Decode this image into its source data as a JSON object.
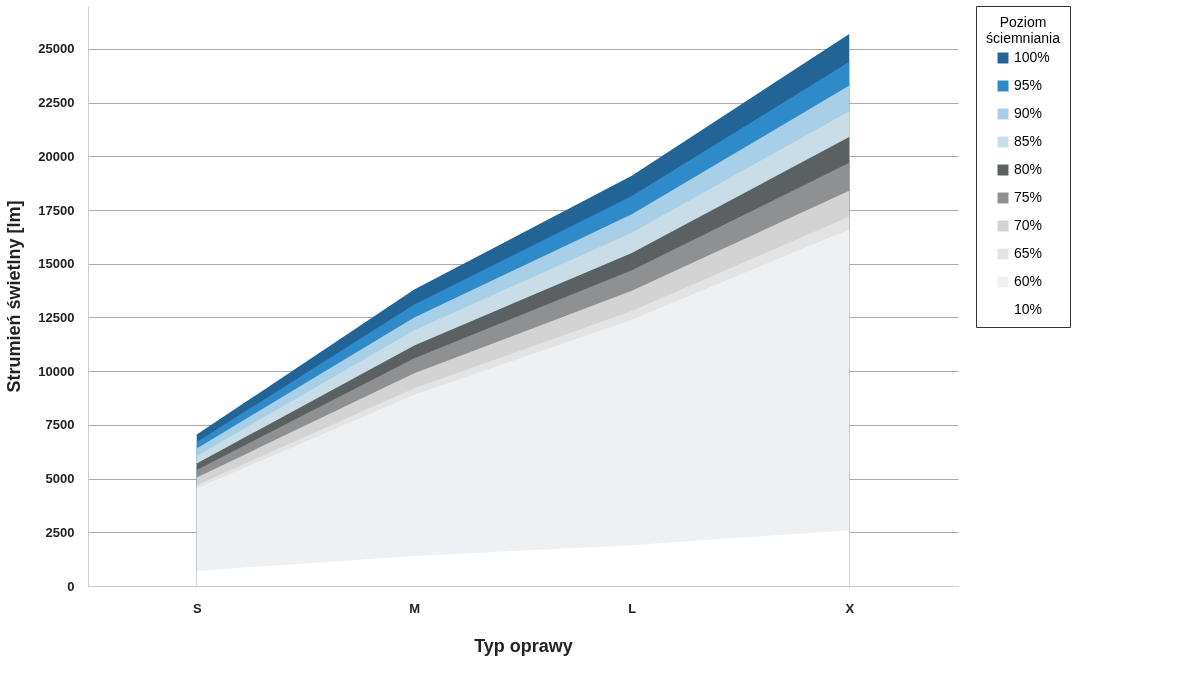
{
  "chart_data": {
    "type": "area",
    "xlabel": "Typ oprawy",
    "ylabel": "Strumień świetlny [lm]",
    "legend_title": "Poziom ściemniania",
    "categories": [
      "S",
      "M",
      "L",
      "X"
    ],
    "series": [
      {
        "name": "100%",
        "color": "#236496",
        "values": [
          7050,
          13800,
          19100,
          25700
        ]
      },
      {
        "name": "95%",
        "color": "#2e8ac9",
        "values": [
          6700,
          13100,
          18150,
          24400
        ]
      },
      {
        "name": "90%",
        "color": "#a8cfe8",
        "values": [
          6400,
          12500,
          17300,
          23300
        ]
      },
      {
        "name": "85%",
        "color": "#c8dde8",
        "values": [
          6050,
          11900,
          16450,
          22100
        ]
      },
      {
        "name": "80%",
        "color": "#5b6163",
        "values": [
          5700,
          11200,
          15500,
          20900
        ]
      },
      {
        "name": "75%",
        "color": "#8e9092",
        "values": [
          5400,
          10600,
          14700,
          19700
        ]
      },
      {
        "name": "70%",
        "color": "#d3d3d3",
        "values": [
          5050,
          9900,
          13750,
          18400
        ]
      },
      {
        "name": "65%",
        "color": "#e3e3e3",
        "values": [
          4700,
          9200,
          12800,
          17200
        ]
      },
      {
        "name": "60%",
        "color": "#eef1f3",
        "values": [
          4550,
          8900,
          12400,
          16600
        ]
      },
      {
        "name": "10%",
        "color": "#ffffff",
        "values": [
          700,
          1400,
          1900,
          2600
        ]
      }
    ],
    "ylim": [
      0,
      27000
    ],
    "yticks": [
      0,
      2500,
      5000,
      7500,
      10000,
      12500,
      15000,
      17500,
      20000,
      22500,
      25000
    ],
    "grid": "y",
    "legend": "right"
  }
}
